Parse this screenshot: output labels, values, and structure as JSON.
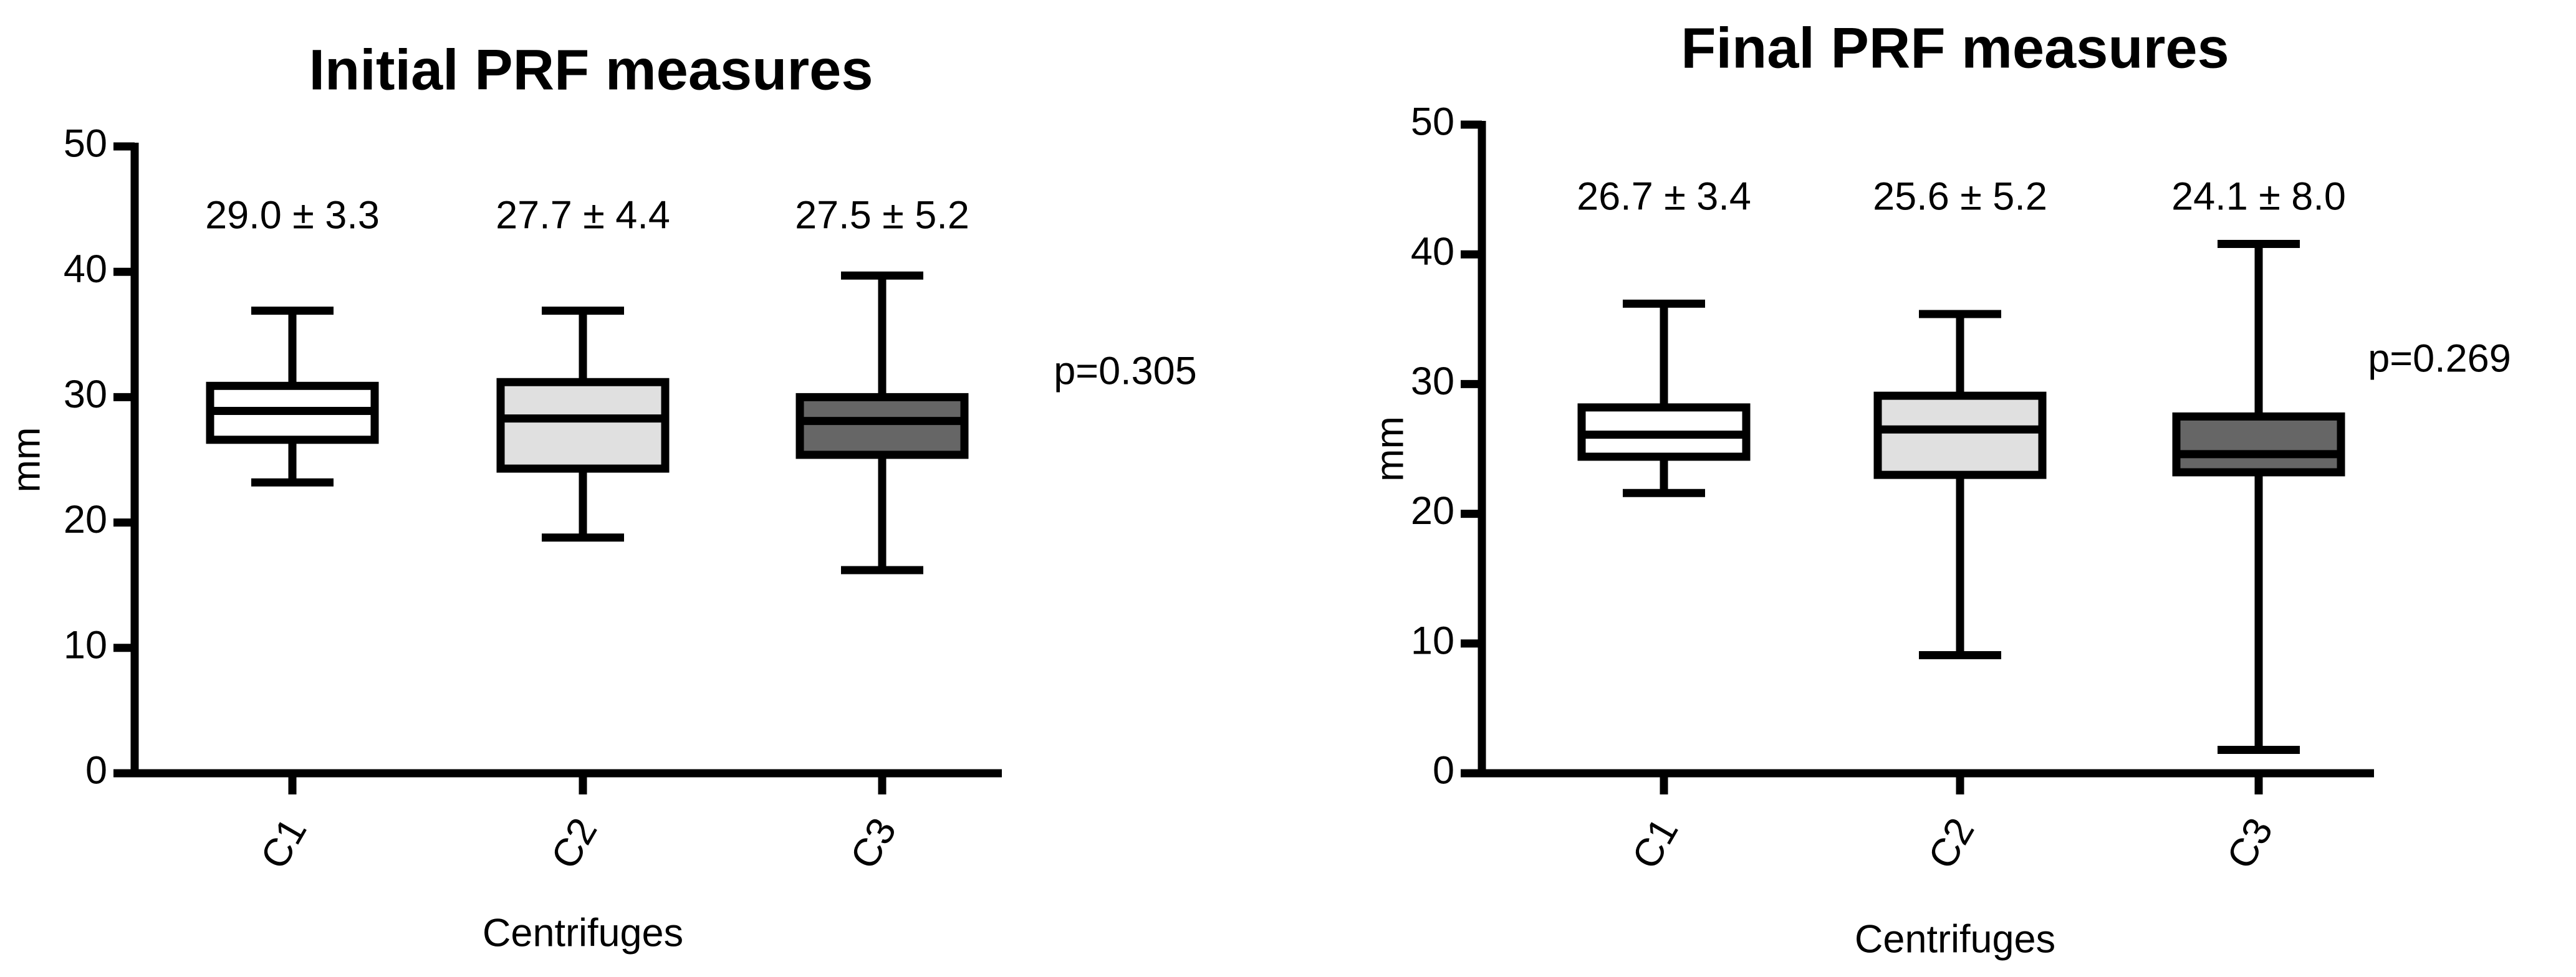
{
  "chart_data": [
    {
      "type": "box",
      "title": "Initial PRF measures",
      "x_label": "Centrifuges",
      "y_label": "mm",
      "categories": [
        "C1",
        "C2",
        "C3"
      ],
      "min": [
        23.2,
        18.8,
        16.2
      ],
      "q1": [
        26.6,
        24.3,
        25.4
      ],
      "median": [
        28.9,
        28.3,
        28.1
      ],
      "q3": [
        30.9,
        31.2,
        30.0
      ],
      "max": [
        36.9,
        36.9,
        39.7
      ],
      "colors": [
        "#ffffff",
        "#e0e0e0",
        "#666666"
      ],
      "annotations": [
        "29.0 ± 3.3",
        "27.7 ± 4.4",
        "27.5 ± 5.2"
      ],
      "p_value": "p=0.305",
      "ylim": [
        0,
        50
      ],
      "yticks": [
        0,
        10,
        20,
        30,
        40,
        50
      ],
      "grid": false
    },
    {
      "type": "box",
      "title": "Final PRF measures",
      "x_label": "Centrifuges",
      "y_label": "mm",
      "categories": [
        "C1",
        "C2",
        "C3"
      ],
      "min": [
        21.6,
        9.1,
        1.8
      ],
      "q1": [
        24.4,
        23.0,
        23.2
      ],
      "median": [
        26.1,
        26.5,
        24.6
      ],
      "q3": [
        28.2,
        29.1,
        27.5
      ],
      "max": [
        36.2,
        35.4,
        40.8
      ],
      "colors": [
        "#ffffff",
        "#e0e0e0",
        "#666666"
      ],
      "annotations": [
        "26.7 ± 3.4",
        "25.6 ± 5.2",
        "24.1 ± 8.0"
      ],
      "p_value": "p=0.269",
      "ylim": [
        0,
        50
      ],
      "yticks": [
        0,
        10,
        20,
        30,
        40,
        50
      ],
      "grid": false
    }
  ]
}
